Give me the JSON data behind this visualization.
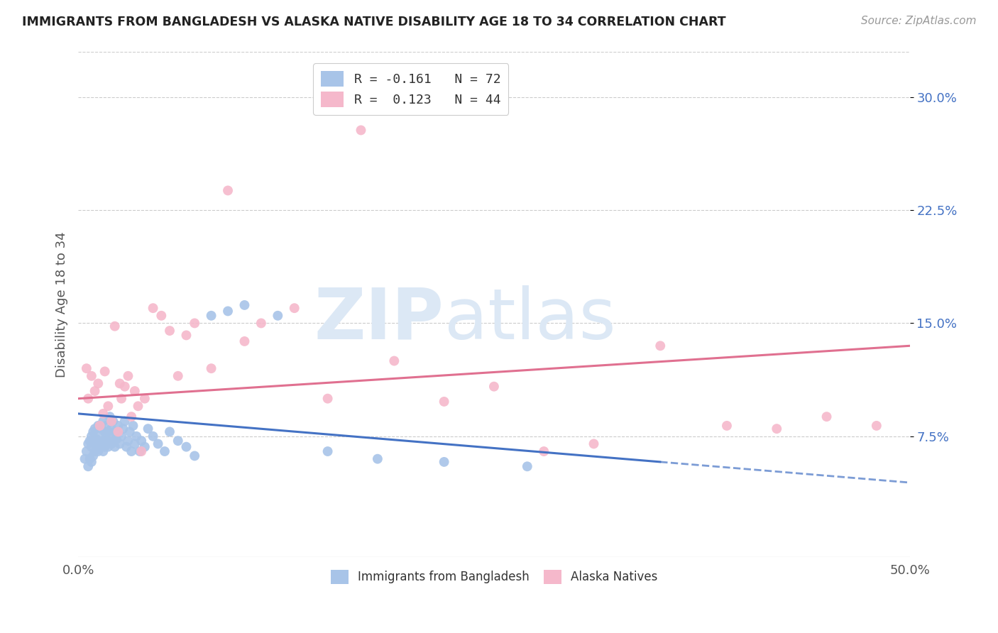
{
  "title": "IMMIGRANTS FROM BANGLADESH VS ALASKA NATIVE DISABILITY AGE 18 TO 34 CORRELATION CHART",
  "source": "Source: ZipAtlas.com",
  "ylabel": "Disability Age 18 to 34",
  "ytick_labels": [
    "7.5%",
    "15.0%",
    "22.5%",
    "30.0%"
  ],
  "ytick_values": [
    0.075,
    0.15,
    0.225,
    0.3
  ],
  "xlim": [
    0.0,
    0.5
  ],
  "ylim": [
    -0.005,
    0.33
  ],
  "legend_label1": "R = -0.161   N = 72",
  "legend_label2": "R =  0.123   N = 44",
  "legend_color1": "#a8c4e8",
  "legend_color2": "#f5b8cb",
  "scatter_color1": "#a8c4e8",
  "scatter_color2": "#f5b8cb",
  "trend_color1": "#4472c4",
  "trend_color2": "#e07090",
  "watermark_zip": "ZIP",
  "watermark_atlas": "atlas",
  "watermark_color": "#dce8f5",
  "watermark_fontsize": 72,
  "r1": -0.161,
  "r2": 0.123,
  "n1": 72,
  "n2": 44,
  "bangladesh_points_x": [
    0.004,
    0.005,
    0.006,
    0.006,
    0.007,
    0.007,
    0.008,
    0.008,
    0.008,
    0.009,
    0.009,
    0.01,
    0.01,
    0.01,
    0.011,
    0.011,
    0.012,
    0.012,
    0.012,
    0.013,
    0.013,
    0.014,
    0.014,
    0.015,
    0.015,
    0.015,
    0.016,
    0.016,
    0.017,
    0.017,
    0.018,
    0.018,
    0.019,
    0.019,
    0.02,
    0.02,
    0.021,
    0.021,
    0.022,
    0.022,
    0.023,
    0.024,
    0.025,
    0.026,
    0.027,
    0.028,
    0.029,
    0.03,
    0.031,
    0.032,
    0.033,
    0.034,
    0.035,
    0.037,
    0.038,
    0.04,
    0.042,
    0.045,
    0.048,
    0.052,
    0.055,
    0.06,
    0.065,
    0.07,
    0.08,
    0.09,
    0.1,
    0.12,
    0.15,
    0.18,
    0.22,
    0.27
  ],
  "bangladesh_points_y": [
    0.06,
    0.065,
    0.055,
    0.07,
    0.06,
    0.072,
    0.058,
    0.068,
    0.075,
    0.062,
    0.078,
    0.065,
    0.07,
    0.08,
    0.068,
    0.073,
    0.065,
    0.072,
    0.082,
    0.068,
    0.075,
    0.07,
    0.08,
    0.065,
    0.072,
    0.085,
    0.068,
    0.078,
    0.072,
    0.082,
    0.068,
    0.078,
    0.075,
    0.088,
    0.07,
    0.08,
    0.072,
    0.085,
    0.068,
    0.078,
    0.073,
    0.082,
    0.07,
    0.075,
    0.08,
    0.085,
    0.068,
    0.072,
    0.078,
    0.065,
    0.082,
    0.07,
    0.075,
    0.065,
    0.072,
    0.068,
    0.08,
    0.075,
    0.07,
    0.065,
    0.078,
    0.072,
    0.068,
    0.062,
    0.155,
    0.158,
    0.162,
    0.155,
    0.065,
    0.06,
    0.058,
    0.055
  ],
  "alaska_points_x": [
    0.005,
    0.006,
    0.008,
    0.01,
    0.012,
    0.013,
    0.015,
    0.016,
    0.018,
    0.02,
    0.022,
    0.024,
    0.025,
    0.026,
    0.028,
    0.03,
    0.032,
    0.034,
    0.036,
    0.038,
    0.04,
    0.045,
    0.05,
    0.055,
    0.06,
    0.065,
    0.07,
    0.08,
    0.09,
    0.1,
    0.11,
    0.13,
    0.15,
    0.17,
    0.19,
    0.22,
    0.25,
    0.28,
    0.31,
    0.35,
    0.39,
    0.42,
    0.45,
    0.48
  ],
  "alaska_points_y": [
    0.12,
    0.1,
    0.115,
    0.105,
    0.11,
    0.082,
    0.09,
    0.118,
    0.095,
    0.085,
    0.148,
    0.078,
    0.11,
    0.1,
    0.108,
    0.115,
    0.088,
    0.105,
    0.095,
    0.065,
    0.1,
    0.16,
    0.155,
    0.145,
    0.115,
    0.142,
    0.15,
    0.12,
    0.238,
    0.138,
    0.15,
    0.16,
    0.1,
    0.278,
    0.125,
    0.098,
    0.108,
    0.065,
    0.07,
    0.135,
    0.082,
    0.08,
    0.088,
    0.082
  ],
  "trend1_x0": 0.0,
  "trend1_x1": 0.35,
  "trend1_y0": 0.09,
  "trend1_y1": 0.058,
  "trend1_dash_x0": 0.35,
  "trend1_dash_x1": 0.5,
  "trend2_x0": 0.0,
  "trend2_x1": 0.5,
  "trend2_y0": 0.1,
  "trend2_y1": 0.135
}
